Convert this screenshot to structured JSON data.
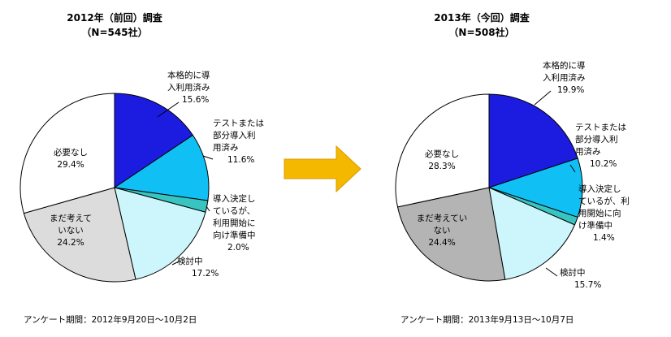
{
  "survey_period_prefix": "アンケート期間：",
  "arrow_color": "#f5b800",
  "chart_data": [
    {
      "type": "pie",
      "title": "2012年（前回）調査",
      "subtitle": "（N=545社）",
      "period": "2012年9月20日～10月2日",
      "slices": [
        {
          "label": "本格的に導入利用済み",
          "lines": [
            "本格的に導",
            "入利用済み"
          ],
          "value": 15.6,
          "pct_label": "15.6%",
          "color": "#1c1ce0"
        },
        {
          "label": "テストまたは部分導入利用済み",
          "lines": [
            "テストまたは",
            "部分導入利",
            "用済み"
          ],
          "value": 11.6,
          "pct_label": "11.6%",
          "color": "#10c0f4"
        },
        {
          "label": "導入決定しているが、利用開始に向け準備中",
          "lines": [
            "導入決定し",
            "ているが、",
            "利用開始に",
            "向け準備中"
          ],
          "value": 2.0,
          "pct_label": "2.0%",
          "color": "#38c4c0"
        },
        {
          "label": "検討中",
          "lines": [
            "検討中"
          ],
          "value": 17.2,
          "pct_label": "17.2%",
          "color": "#ccf6fc"
        },
        {
          "label": "まだ考えていない",
          "lines": [
            "まだ考えて",
            "いない"
          ],
          "value": 24.2,
          "pct_label": "24.2%",
          "color": "#dcdcdc"
        },
        {
          "label": "必要なし",
          "lines": [
            "必要なし"
          ],
          "value": 29.4,
          "pct_label": "29.4%",
          "color": "#ffffff"
        }
      ]
    },
    {
      "type": "pie",
      "title": "2013年（今回）調査",
      "subtitle": "（N=508社）",
      "period": "2013年9月13日～10月7日",
      "slices": [
        {
          "label": "本格的に導入利用済み",
          "lines": [
            "本格的に導",
            "入利用済み"
          ],
          "value": 19.9,
          "pct_label": "19.9%",
          "color": "#1c1ce0"
        },
        {
          "label": "テストまたは部分導入利用済み",
          "lines": [
            "テストまたは",
            "部分導入利",
            "用済み"
          ],
          "value": 10.2,
          "pct_label": "10.2%",
          "color": "#10c0f4"
        },
        {
          "label": "導入決定しているが、利用開始に向け準備中",
          "lines": [
            "導入決定し",
            "ているが、利",
            "用開始に向",
            "け準備中"
          ],
          "value": 1.4,
          "pct_label": "1.4%",
          "color": "#38c4c0"
        },
        {
          "label": "検討中",
          "lines": [
            "検討中"
          ],
          "value": 15.7,
          "pct_label": "15.7%",
          "color": "#ccf6fc"
        },
        {
          "label": "まだ考えていない",
          "lines": [
            "まだ考えてい",
            "ない"
          ],
          "value": 24.4,
          "pct_label": "24.4%",
          "color": "#b4b4b4"
        },
        {
          "label": "必要なし",
          "lines": [
            "必要なし"
          ],
          "value": 28.3,
          "pct_label": "28.3%",
          "color": "#ffffff"
        }
      ]
    }
  ]
}
